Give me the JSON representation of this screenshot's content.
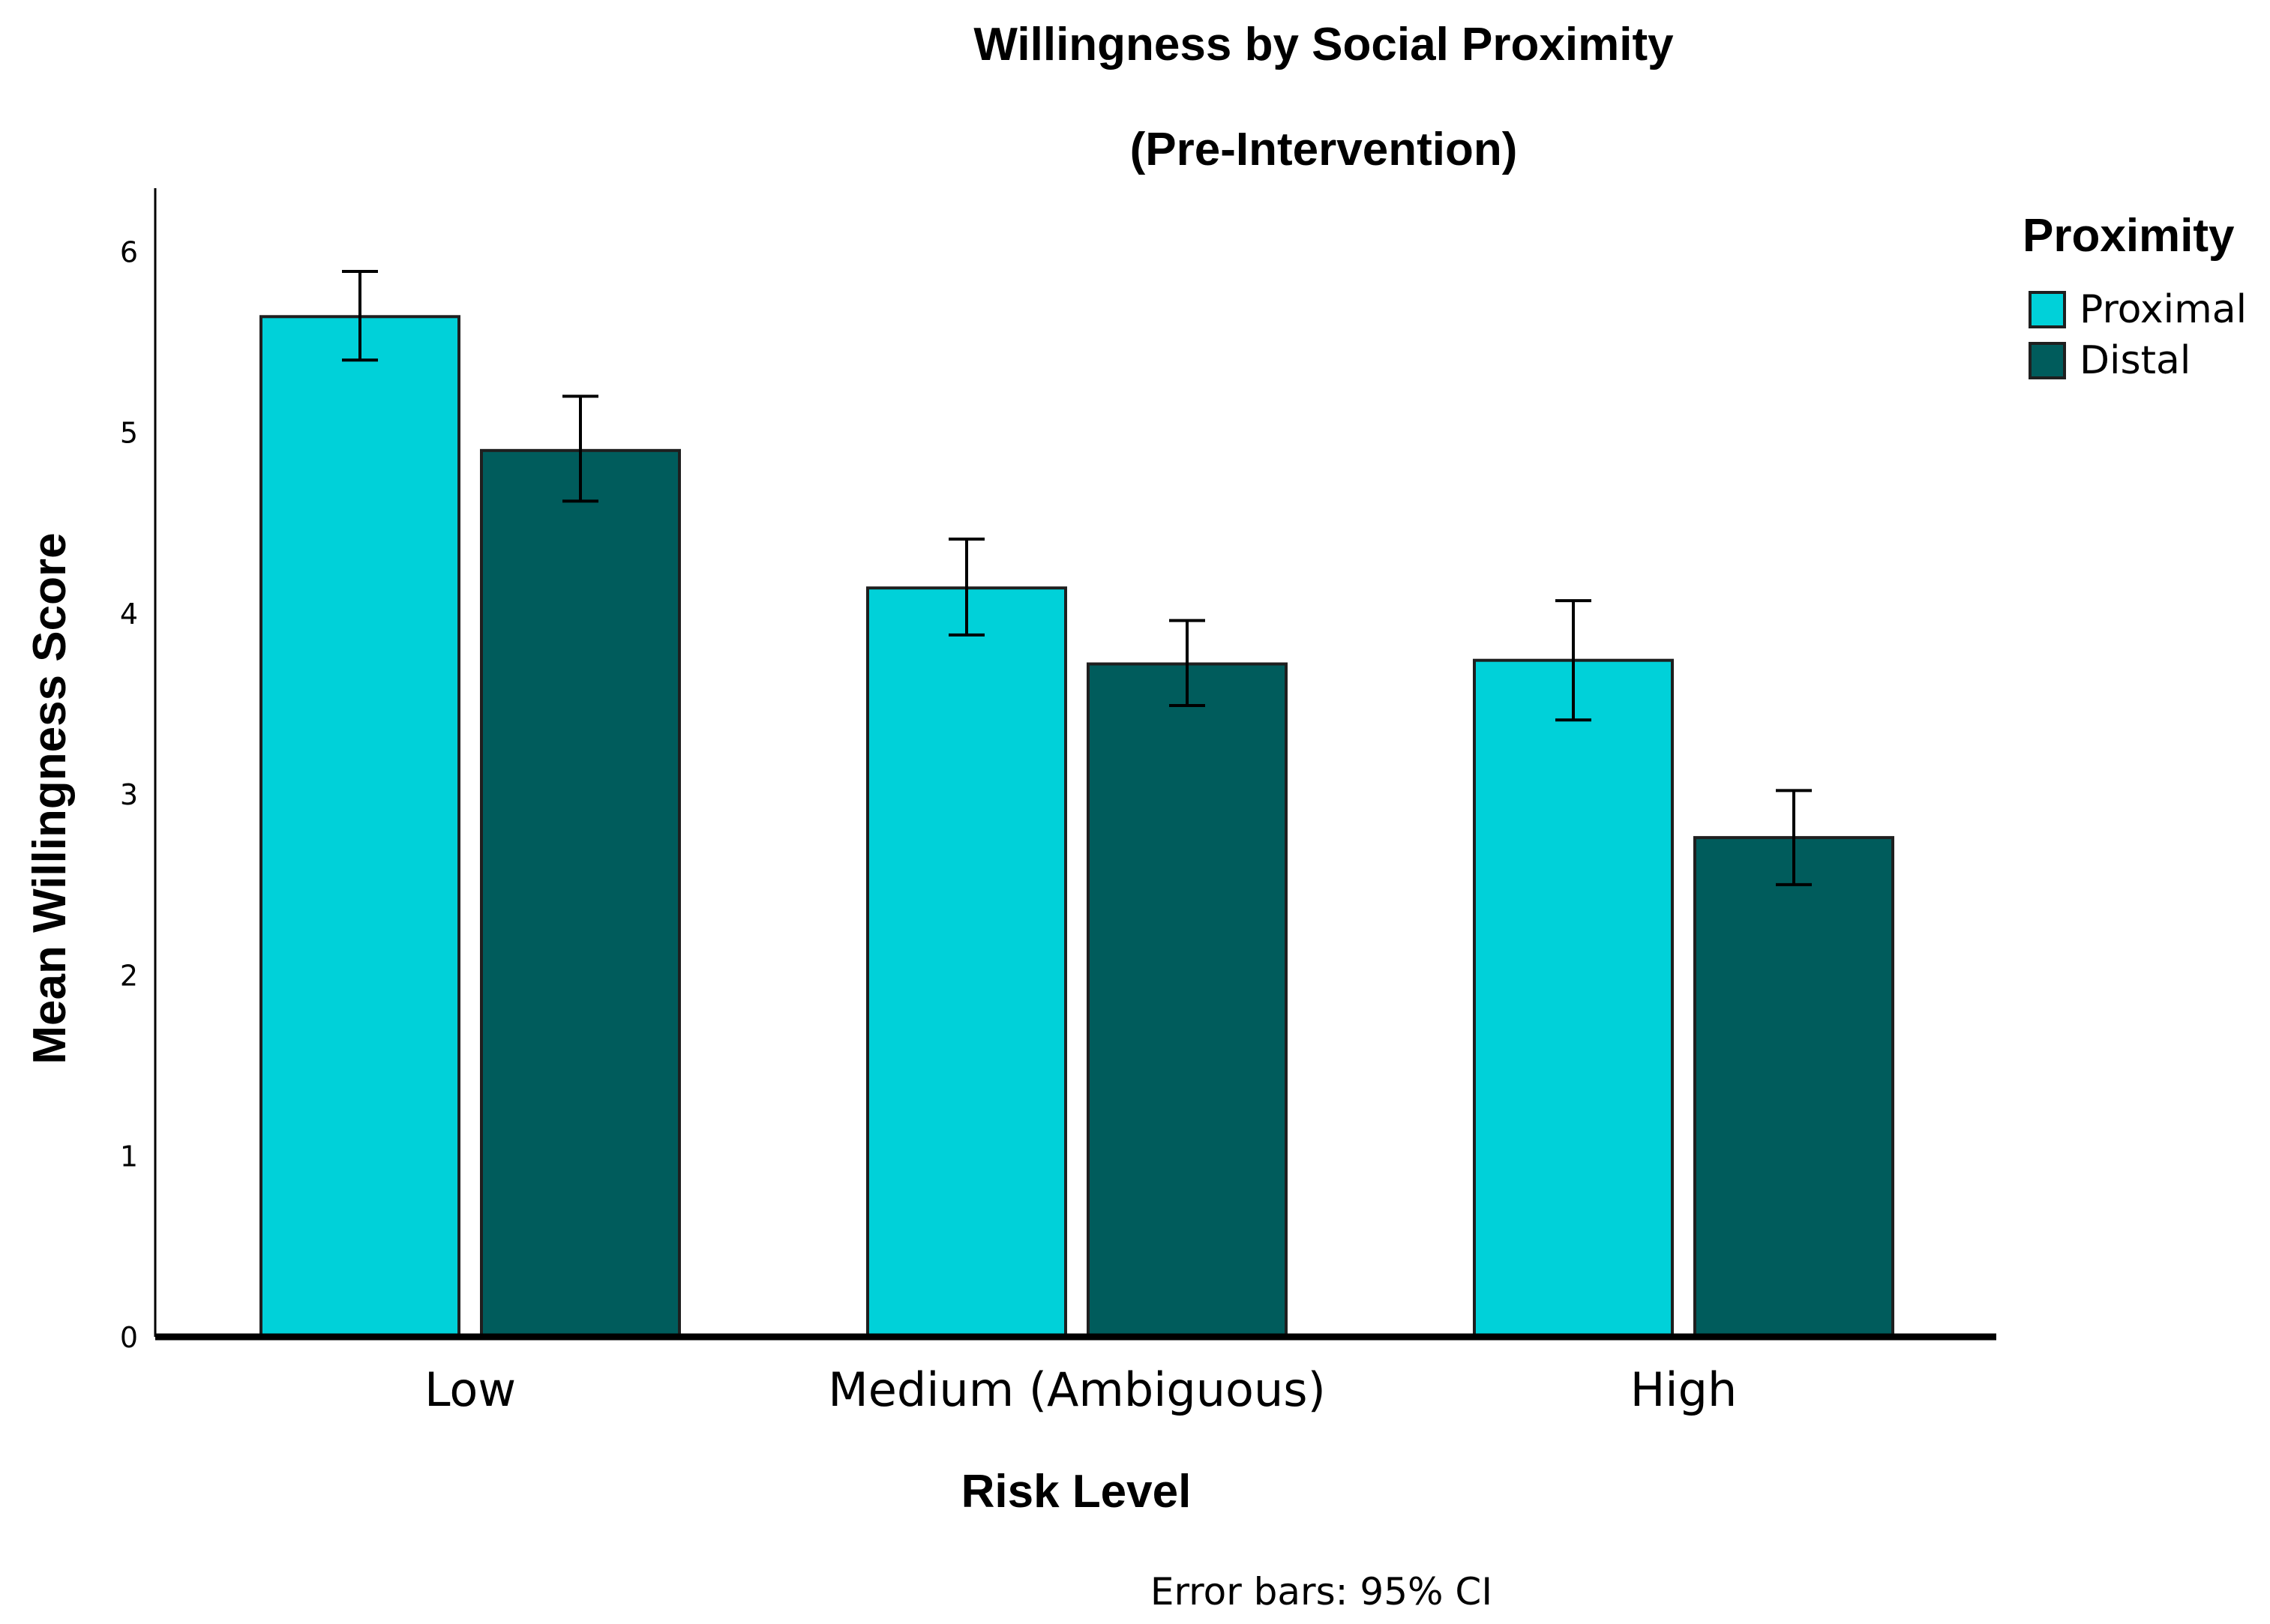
{
  "chart_data": {
    "type": "bar",
    "title": "Willingness by Social Proximity",
    "subtitle": "(Pre-Intervention)",
    "xlabel": "Risk Level",
    "ylabel": "Mean Willingness Score",
    "categories": [
      "Low",
      "Medium (Ambiguous)",
      "High"
    ],
    "ylim": [
      0,
      6.35
    ],
    "yticks": [
      0,
      1,
      2,
      3,
      4,
      5,
      6
    ],
    "grid": false,
    "legend": {
      "title": "Proximity",
      "placement": "top-right"
    },
    "series": [
      {
        "name": "Proximal",
        "color": "#00D1D9",
        "values": [
          5.64,
          4.14,
          3.74
        ],
        "ci_low": [
          5.4,
          3.88,
          3.41
        ],
        "ci_high": [
          5.89,
          4.41,
          4.07
        ]
      },
      {
        "name": "Distal",
        "color": "#005C5C",
        "values": [
          4.9,
          3.72,
          2.76
        ],
        "ci_low": [
          4.62,
          3.49,
          2.5
        ],
        "ci_high": [
          5.2,
          3.96,
          3.02
        ]
      }
    ],
    "footnote": "Error bars: 95% CI"
  }
}
